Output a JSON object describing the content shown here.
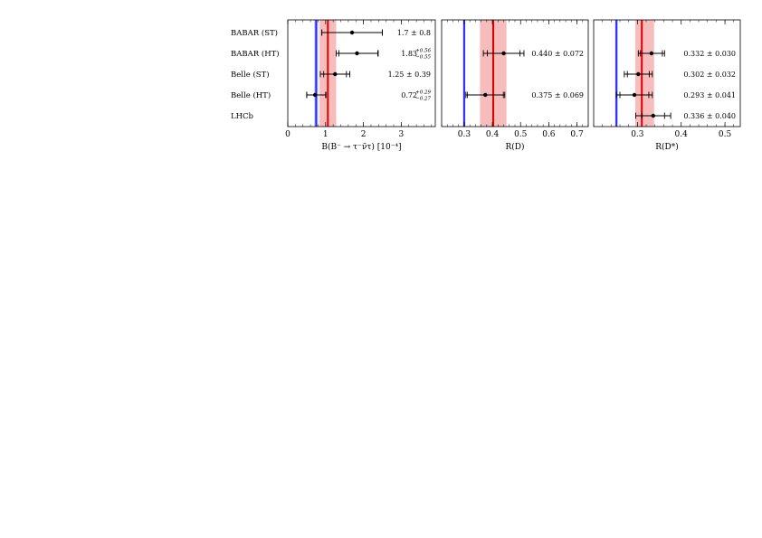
{
  "colors": {
    "sm_line": "#2a2aff",
    "avg_line": "#e00000",
    "avg_band": "#f7bcbc",
    "sm_band": "#b9c0f2",
    "point": "#000000"
  },
  "chart_data": {
    "type": "forest",
    "rows": [
      "BABAR (ST)",
      "BABAR (HT)",
      "Belle (ST)",
      "Belle (HT)",
      "LHCb"
    ],
    "panels": [
      {
        "xlabel": "B(B⁻ → τ⁻ν̄τ) [10⁻⁴]",
        "xlim": [
          0,
          3.9
        ],
        "ticks": [
          0,
          1,
          2,
          3
        ],
        "tick_labels": [
          "0",
          "1",
          "2",
          "3"
        ],
        "sm": 0.75,
        "sm_band": [
          0.7,
          0.8
        ],
        "average": 1.06,
        "average_band": [
          0.84,
          1.28
        ],
        "points": [
          {
            "row": 0,
            "value": 1.7,
            "stat": [
              0.9,
              2.5
            ],
            "total": [
              0.9,
              2.5
            ],
            "label": "1.7 ± 0.8",
            "label_sup": "",
            "label_sub": ""
          },
          {
            "row": 1,
            "value": 1.83,
            "stat": [
              1.35,
              2.38
            ],
            "total": [
              1.28,
              2.39
            ],
            "label": "1.83",
            "label_sup": "+0.56",
            "label_sub": "−0.55"
          },
          {
            "row": 2,
            "value": 1.25,
            "stat": [
              0.95,
              1.55
            ],
            "total": [
              0.86,
              1.64
            ],
            "label": "1.25 ± 0.39",
            "label_sup": "",
            "label_sub": ""
          },
          {
            "row": 3,
            "value": 0.72,
            "stat": [
              0.5,
              1.0
            ],
            "total": [
              0.5,
              1.01
            ],
            "label": "0.72",
            "label_sup": "+0.29",
            "label_sub": "−0.27"
          }
        ]
      },
      {
        "xlabel": "R(D)",
        "xlim": [
          0.22,
          0.74
        ],
        "ticks": [
          0.3,
          0.4,
          0.5,
          0.6,
          0.7
        ],
        "tick_labels": [
          "0.3",
          "0.4",
          "0.5",
          "0.6",
          "0.7"
        ],
        "sm": 0.3,
        "sm_band": [
          0.296,
          0.304
        ],
        "average": 0.403,
        "average_band": [
          0.356,
          0.45
        ],
        "points": [
          {
            "row": 1,
            "value": 0.44,
            "stat": [
              0.382,
              0.498
            ],
            "total": [
              0.368,
              0.512
            ],
            "label": "0.440 ± 0.072",
            "label_sup": "",
            "label_sub": ""
          },
          {
            "row": 3,
            "value": 0.375,
            "stat": [
              0.311,
              0.439
            ],
            "total": [
              0.306,
              0.444
            ],
            "label": "0.375 ± 0.069",
            "label_sup": "",
            "label_sub": ""
          }
        ]
      },
      {
        "xlabel": "R(D*)",
        "xlim": [
          0.2,
          0.535
        ],
        "ticks": [
          0.3,
          0.4,
          0.5
        ],
        "tick_labels": [
          "0.3",
          "0.4",
          "0.5"
        ],
        "sm": 0.252,
        "sm_band": [
          0.249,
          0.255
        ],
        "average": 0.31,
        "average_band": [
          0.295,
          0.338
        ],
        "points": [
          {
            "row": 1,
            "value": 0.332,
            "stat": [
              0.307,
              0.357
            ],
            "total": [
              0.302,
              0.362
            ],
            "label": "0.332 ± 0.030",
            "label_sup": "",
            "label_sub": ""
          },
          {
            "row": 2,
            "value": 0.302,
            "stat": [
              0.277,
              0.327
            ],
            "total": [
              0.27,
              0.334
            ],
            "label": "0.302 ± 0.032",
            "label_sup": "",
            "label_sub": ""
          },
          {
            "row": 3,
            "value": 0.293,
            "stat": [
              0.26,
              0.326
            ],
            "total": [
              0.252,
              0.334
            ],
            "label": "0.293 ± 0.041",
            "label_sup": "",
            "label_sub": ""
          },
          {
            "row": 4,
            "value": 0.336,
            "stat": [
              0.31,
              0.362
            ],
            "total": [
              0.296,
              0.376
            ],
            "label": "0.336 ± 0.040",
            "label_sup": "",
            "label_sub": ""
          }
        ]
      }
    ]
  }
}
